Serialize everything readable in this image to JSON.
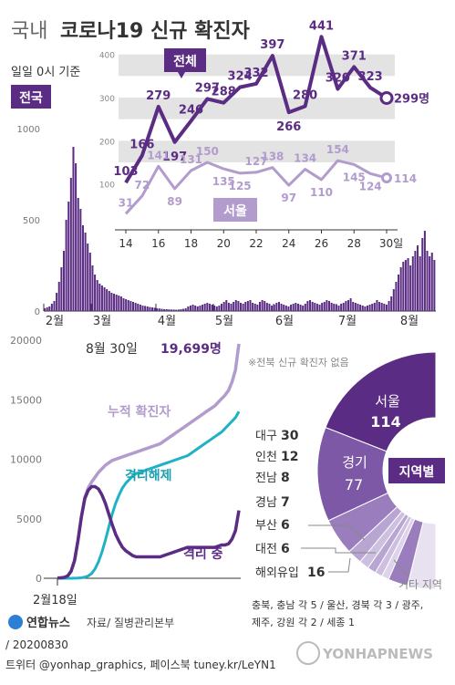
{
  "header": {
    "title_prefix": "국내",
    "title_main": "코로나19 신규 확진자",
    "basis": "일일 0시 기준",
    "national_badge": "전국"
  },
  "colors": {
    "dark_purple": "#5b2c83",
    "light_purple": "#b19ccd",
    "teal": "#1fb2c4",
    "gray_band": "#e3e3e3",
    "map_shades": [
      "#5b2c83",
      "#7c58a6",
      "#9a7dbd",
      "#b8a5d2",
      "#cdbfe0",
      "#ddd3ea",
      "#e8e1f0"
    ]
  },
  "chart_data": [
    {
      "type": "line",
      "x": [
        14,
        15,
        16,
        17,
        18,
        19,
        20,
        21,
        22,
        23,
        24,
        25,
        26,
        27,
        28,
        29,
        30
      ],
      "xticks": [
        "14",
        "16",
        "18",
        "20",
        "22",
        "24",
        "26",
        "28",
        "30일"
      ],
      "ylim": [
        0,
        450
      ],
      "yticks": [
        "100",
        "200",
        "300",
        "400"
      ],
      "series": [
        {
          "name": "전체",
          "values": [
            103,
            166,
            279,
            197,
            246,
            297,
            288,
            324,
            332,
            397,
            266,
            280,
            441,
            320,
            371,
            323,
            299
          ],
          "labels": [
            "103",
            "166",
            "279",
            "197",
            "246",
            "297",
            "288",
            "324",
            "332",
            "397",
            "266",
            "280",
            "441",
            "320",
            "371",
            "323",
            "299명"
          ]
        },
        {
          "name": "서울",
          "values": [
            31,
            72,
            141,
            89,
            131,
            150,
            135,
            125,
            127,
            138,
            97,
            134,
            110,
            154,
            145,
            124,
            114
          ],
          "labels": [
            "31",
            "72",
            "141",
            "89",
            "131",
            "150",
            "135",
            "125",
            "127",
            "138",
            "97",
            "134",
            "110",
            "154",
            "145",
            "124",
            "114"
          ]
        }
      ]
    },
    {
      "type": "bar",
      "series_name": "전국",
      "ylim": [
        0,
        1000
      ],
      "yticks": [
        "0",
        "500",
        "1000"
      ],
      "xticks": [
        "2월",
        "3월",
        "4월",
        "5월",
        "6월",
        "7월",
        "8월"
      ],
      "values": [
        15,
        20,
        25,
        40,
        55,
        100,
        160,
        240,
        330,
        500,
        600,
        730,
        900,
        810,
        620,
        560,
        470,
        430,
        370,
        320,
        250,
        200,
        170,
        150,
        140,
        130,
        120,
        110,
        100,
        95,
        90,
        85,
        80,
        70,
        65,
        60,
        55,
        50,
        45,
        40,
        35,
        30,
        28,
        25,
        22,
        20,
        18,
        15,
        14,
        12,
        10,
        10,
        9,
        8,
        8,
        7,
        8,
        10,
        12,
        15,
        25,
        30,
        35,
        30,
        25,
        30,
        35,
        40,
        45,
        40,
        35,
        30,
        25,
        30,
        40,
        50,
        60,
        45,
        40,
        50,
        60,
        55,
        45,
        40,
        50,
        55,
        60,
        45,
        40,
        35,
        50,
        60,
        55,
        45,
        40,
        30,
        35,
        45,
        50,
        40,
        35,
        30,
        25,
        35,
        40,
        45,
        40,
        35,
        30,
        40,
        55,
        60,
        50,
        45,
        40,
        35,
        45,
        50,
        60,
        55,
        45,
        40,
        35,
        30,
        40,
        45,
        55,
        60,
        70,
        50,
        45,
        40,
        35,
        30,
        25,
        30,
        35,
        40,
        45,
        60,
        50,
        45,
        40,
        35,
        55,
        80,
        120,
        160,
        200,
        240,
        270,
        280,
        290,
        250,
        300,
        330,
        360,
        300,
        400,
        440,
        330,
        300,
        320,
        280
      ]
    },
    {
      "type": "line",
      "ylim": [
        0,
        20000
      ],
      "yticks": [
        "0",
        "5000",
        "10000",
        "15000",
        "20000"
      ],
      "xstart": "2월18일",
      "annotation_date": "8월 30일",
      "annotation_value": "19,699명",
      "series": [
        {
          "name": "누적 확진자",
          "values": [
            30,
            40,
            80,
            200,
            600,
            1500,
            3200,
            5200,
            6800,
            7600,
            8100,
            8500,
            8900,
            9200,
            9500,
            9700,
            9900,
            10000,
            10100,
            10200,
            10300,
            10400,
            10500,
            10600,
            10700,
            10800,
            10900,
            11000,
            11100,
            11200,
            11300,
            11500,
            11700,
            11900,
            12100,
            12300,
            12500,
            12700,
            12900,
            13100,
            13300,
            13500,
            13700,
            13900,
            14100,
            14300,
            14500,
            14800,
            15100,
            15400,
            15800,
            16500,
            17500,
            19699
          ]
        },
        {
          "name": "격리해제",
          "values": [
            0,
            0,
            0,
            0,
            0,
            10,
            20,
            40,
            100,
            200,
            400,
            800,
            1400,
            2200,
            3200,
            4300,
            5400,
            6300,
            7000,
            7600,
            8000,
            8300,
            8600,
            8800,
            8900,
            9000,
            9100,
            9200,
            9300,
            9400,
            9500,
            9600,
            9700,
            9800,
            9900,
            10000,
            10100,
            10200,
            10300,
            10500,
            10700,
            10900,
            11100,
            11300,
            11500,
            11700,
            11900,
            12100,
            12300,
            12600,
            12900,
            13200,
            13500,
            14000
          ]
        },
        {
          "name": "격리 중",
          "values": [
            30,
            40,
            80,
            200,
            600,
            1490,
            3180,
            5160,
            6700,
            7400,
            7700,
            7700,
            7500,
            7000,
            6300,
            5400,
            4500,
            3700,
            3100,
            2600,
            2300,
            2100,
            1900,
            1800,
            1800,
            1800,
            1800,
            1800,
            1800,
            1800,
            1800,
            1900,
            2000,
            2100,
            2200,
            2300,
            2400,
            2500,
            2600,
            2600,
            2600,
            2600,
            2600,
            2600,
            2600,
            2600,
            2600,
            2700,
            2800,
            2800,
            2900,
            3300,
            4000,
            5700
          ]
        }
      ]
    },
    {
      "type": "pie",
      "title": "지역별",
      "note": "※전북 신규 확진자 없음",
      "categories": [
        "서울",
        "경기",
        "대구",
        "인천",
        "전남",
        "경남",
        "부산",
        "대전",
        "해외유입",
        "기타"
      ],
      "values": [
        114,
        77,
        30,
        12,
        8,
        7,
        6,
        6,
        16,
        23
      ],
      "other_label": "기타 지역",
      "other_detail": [
        "충북, 충남 각 5 / 울산, 경북 각 3 / 광주,",
        "제주, 강원 각 2 / 세종 1"
      ]
    }
  ],
  "regions_list": [
    {
      "name": "대구",
      "count": "30"
    },
    {
      "name": "인천",
      "count": "12"
    },
    {
      "name": "전남",
      "count": "8"
    },
    {
      "name": "경남",
      "count": "7"
    },
    {
      "name": "부산",
      "count": "6"
    },
    {
      "name": "대전",
      "count": "6"
    },
    {
      "name": "해외유입",
      "count": "16"
    }
  ],
  "footer": {
    "logo_text": "연합뉴스",
    "source": "자료/ 질병관리본부",
    "date_code": "/ 20200830",
    "social": "트위터 @yonhap_graphics, 페이스북 tuney.kr/LeYN1",
    "watermark": "YONHAPNEWS"
  }
}
